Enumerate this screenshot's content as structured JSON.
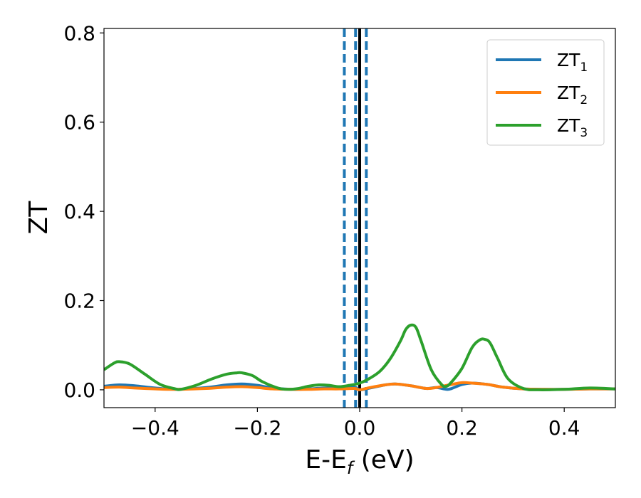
{
  "chart_data": {
    "type": "line",
    "xlabel_base": "E-E",
    "xlabel_sub": "f",
    "xlabel_unit": " (eV)",
    "ylabel": "ZT",
    "xlim": [
      -0.5,
      0.5
    ],
    "ylim": [
      -0.04,
      0.81
    ],
    "xticks": [
      -0.4,
      -0.2,
      0.0,
      0.2,
      0.4
    ],
    "xtick_labels": [
      "−0.4",
      "−0.2",
      "0.0",
      "0.2",
      "0.4"
    ],
    "yticks": [
      0.0,
      0.2,
      0.4,
      0.6,
      0.8
    ],
    "ytick_labels": [
      "0.0",
      "0.2",
      "0.4",
      "0.6",
      "0.8"
    ],
    "grid": false,
    "legend_position": "top-right",
    "vertical_lines": [
      {
        "x": -0.03,
        "style": "dashed",
        "color": "#1f77b4"
      },
      {
        "x": -0.008,
        "style": "dashed",
        "color": "#1f77b4"
      },
      {
        "x": 0.013,
        "style": "dashed",
        "color": "#1f77b4"
      },
      {
        "x": 0.0,
        "style": "solid",
        "color": "#000000"
      }
    ],
    "series": [
      {
        "name": "ZT",
        "sub": "1",
        "color": "#1f77b4",
        "x": [
          -0.5,
          -0.47,
          -0.44,
          -0.4,
          -0.36,
          -0.3,
          -0.26,
          -0.23,
          -0.2,
          -0.17,
          -0.13,
          -0.1,
          -0.07,
          -0.04,
          -0.01,
          0.0,
          0.02,
          0.05,
          0.07,
          0.1,
          0.13,
          0.15,
          0.17,
          0.18,
          0.2,
          0.22,
          0.25,
          0.28,
          0.32,
          0.36,
          0.4,
          0.45,
          0.5
        ],
        "y": [
          0.008,
          0.011,
          0.009,
          0.004,
          0.001,
          0.005,
          0.011,
          0.013,
          0.01,
          0.004,
          0.001,
          0.002,
          0.004,
          0.004,
          0.006,
          0.0,
          0.004,
          0.011,
          0.013,
          0.009,
          0.003,
          0.005,
          0.001,
          0.003,
          0.012,
          0.015,
          0.012,
          0.006,
          0.002,
          0.001,
          0.001,
          0.002,
          0.002
        ]
      },
      {
        "name": "ZT",
        "sub": "2",
        "color": "#ff7f0e",
        "x": [
          -0.5,
          -0.47,
          -0.44,
          -0.4,
          -0.36,
          -0.3,
          -0.26,
          -0.23,
          -0.2,
          -0.17,
          -0.13,
          -0.1,
          -0.07,
          -0.04,
          -0.01,
          0.0,
          0.02,
          0.05,
          0.07,
          0.1,
          0.13,
          0.15,
          0.17,
          0.18,
          0.2,
          0.22,
          0.25,
          0.28,
          0.32,
          0.36,
          0.4,
          0.45,
          0.5
        ],
        "y": [
          0.005,
          0.006,
          0.004,
          0.002,
          0.001,
          0.003,
          0.006,
          0.007,
          0.005,
          0.002,
          0.001,
          0.001,
          0.002,
          0.002,
          0.003,
          0.0,
          0.005,
          0.011,
          0.013,
          0.009,
          0.003,
          0.005,
          0.01,
          0.012,
          0.016,
          0.015,
          0.012,
          0.006,
          0.002,
          0.001,
          0.001,
          0.002,
          0.002
        ]
      },
      {
        "name": "ZT",
        "sub": "3",
        "color": "#2ca02c",
        "x": [
          -0.5,
          -0.48,
          -0.47,
          -0.45,
          -0.42,
          -0.39,
          -0.36,
          -0.35,
          -0.32,
          -0.29,
          -0.26,
          -0.24,
          -0.23,
          -0.21,
          -0.19,
          -0.16,
          -0.14,
          -0.12,
          -0.1,
          -0.08,
          -0.06,
          -0.04,
          -0.02,
          0.0,
          0.02,
          0.04,
          0.06,
          0.08,
          0.09,
          0.1,
          0.11,
          0.12,
          0.14,
          0.16,
          0.17,
          0.18,
          0.2,
          0.22,
          0.235,
          0.245,
          0.255,
          0.27,
          0.29,
          0.32,
          0.35,
          0.4,
          0.45,
          0.5
        ],
        "y": [
          0.045,
          0.06,
          0.063,
          0.058,
          0.035,
          0.012,
          0.002,
          0.001,
          0.01,
          0.024,
          0.035,
          0.038,
          0.038,
          0.032,
          0.018,
          0.004,
          0.001,
          0.003,
          0.008,
          0.011,
          0.01,
          0.007,
          0.01,
          0.015,
          0.026,
          0.042,
          0.07,
          0.11,
          0.135,
          0.145,
          0.14,
          0.11,
          0.045,
          0.012,
          0.008,
          0.018,
          0.048,
          0.095,
          0.112,
          0.113,
          0.105,
          0.07,
          0.025,
          0.003,
          0.0,
          0.001,
          0.004,
          0.002
        ]
      }
    ]
  }
}
